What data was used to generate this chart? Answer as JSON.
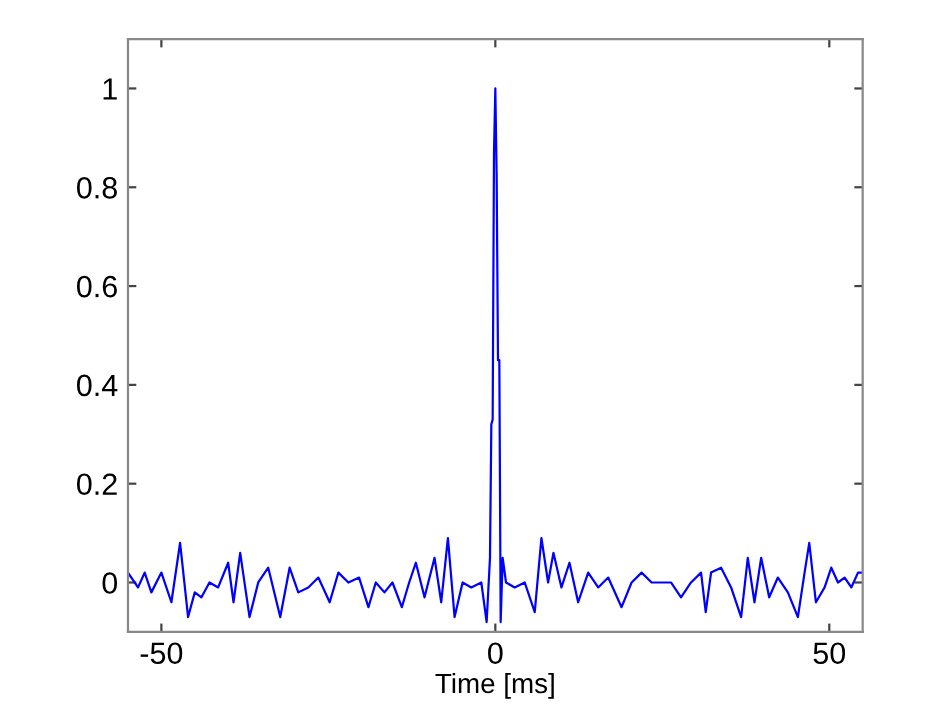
{
  "chart_data": {
    "type": "line",
    "xlabel": "Time [ms]",
    "xlim": [
      -55,
      55
    ],
    "ylim": [
      -0.1,
      1.1
    ],
    "xticks": [
      -50,
      0,
      50
    ],
    "yticks": [
      0,
      0.2,
      0.4,
      0.6,
      0.8,
      1
    ],
    "grid": false,
    "marker": "none",
    "line_style": "solid",
    "series": [
      {
        "color": "#0000ff",
        "x": [
          -55,
          -53.5,
          -52.5,
          -51.5,
          -50,
          -48.5,
          -47.2,
          -46,
          -45,
          -44,
          -42.8,
          -41.5,
          -40,
          -39.2,
          -38.2,
          -36.8,
          -35.5,
          -34,
          -32.2,
          -30.8,
          -29.5,
          -28,
          -26.5,
          -24.8,
          -23.5,
          -22,
          -20.4,
          -19,
          -17.9,
          -16.6,
          -15.4,
          -14,
          -12.9,
          -11.9,
          -10.6,
          -9.1,
          -8.1,
          -7.1,
          -6.1,
          -4.9,
          -3.6,
          -2.1,
          -1.3,
          -0.8,
          -0.6,
          -0.4,
          -0.2,
          0,
          0.2,
          0.4,
          0.6,
          0.8,
          1.1,
          1.6,
          2.9,
          4.4,
          5.9,
          6.9,
          7.9,
          8.7,
          9.9,
          11.1,
          12.4,
          13.9,
          15.4,
          16.9,
          18.9,
          20.4,
          21.9,
          23.4,
          24.9,
          26.3,
          27.8,
          29.3,
          30.8,
          31.5,
          32.3,
          33.8,
          35.3,
          36.8,
          37.8,
          38.8,
          39.8,
          41,
          42.3,
          43.8,
          45.3,
          46.3,
          47,
          48,
          49.3,
          50.3,
          51.3,
          52.3,
          53.3,
          54.3,
          55
        ],
        "values": [
          0.02,
          -0.01,
          0.02,
          -0.02,
          0.02,
          -0.04,
          0.08,
          -0.07,
          -0.02,
          -0.03,
          0.0,
          -0.01,
          0.04,
          -0.04,
          0.06,
          -0.07,
          0.0,
          0.03,
          -0.07,
          0.03,
          -0.02,
          -0.01,
          0.01,
          -0.04,
          0.02,
          0.0,
          0.01,
          -0.05,
          0.0,
          -0.02,
          0.0,
          -0.05,
          0.0,
          0.04,
          -0.03,
          0.05,
          -0.04,
          0.09,
          -0.07,
          0.0,
          -0.01,
          0.0,
          -0.08,
          0.05,
          0.32,
          0.33,
          0.87,
          1.0,
          0.82,
          0.45,
          0.45,
          -0.08,
          0.05,
          0.0,
          -0.01,
          0.0,
          -0.06,
          0.09,
          0.0,
          0.06,
          -0.01,
          0.04,
          -0.04,
          0.02,
          -0.01,
          0.01,
          -0.05,
          0.0,
          0.02,
          0.0,
          0.0,
          0.0,
          -0.03,
          0.0,
          0.02,
          -0.06,
          0.02,
          0.03,
          -0.01,
          -0.07,
          0.05,
          -0.04,
          0.05,
          -0.03,
          0.01,
          -0.02,
          -0.07,
          0.02,
          0.08,
          -0.04,
          -0.01,
          0.03,
          0.0,
          0.01,
          -0.01,
          0.02,
          0.02
        ]
      }
    ]
  }
}
